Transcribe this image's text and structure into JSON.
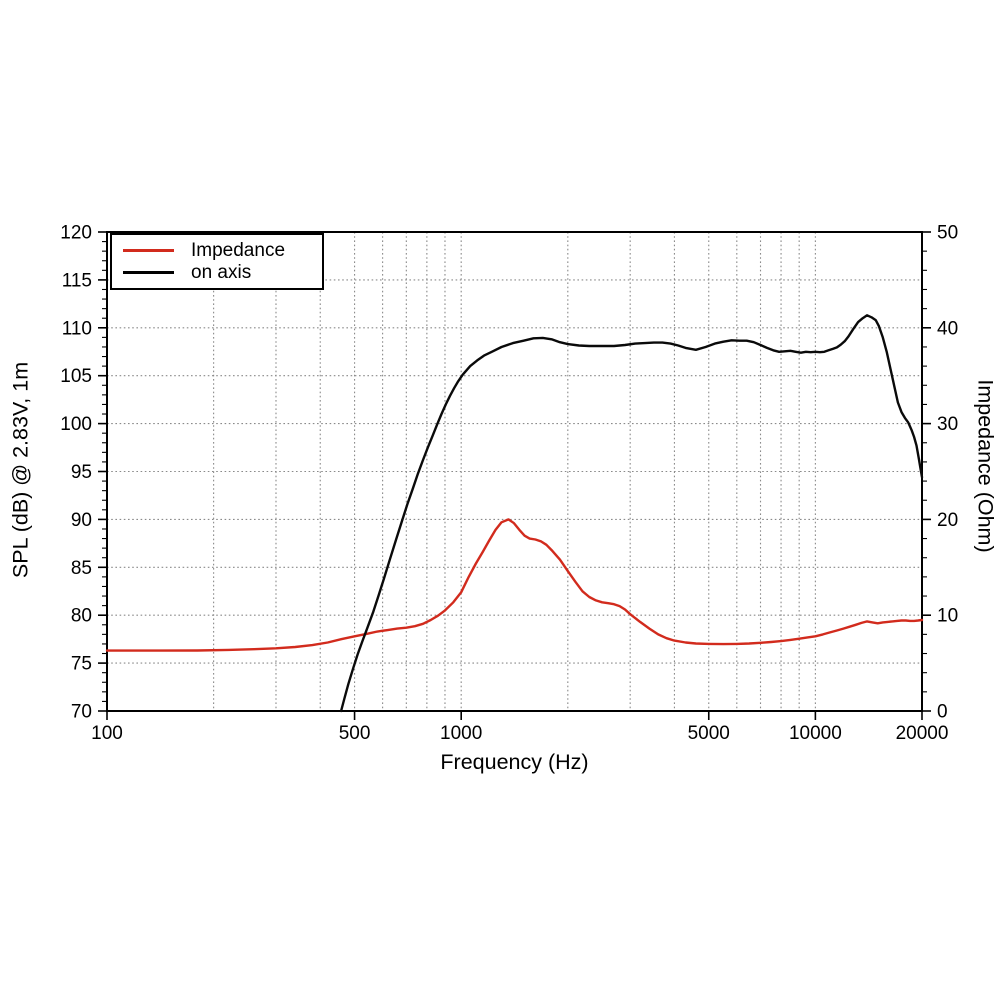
{
  "figure": {
    "background": "#ffffff",
    "frame_color": "#000000",
    "grid_color": "#8a8a8a"
  },
  "chart_data": {
    "type": "line",
    "title": "",
    "xlabel": "Frequency (Hz)",
    "ylabel_left": "SPL (dB) @ 2.83V, 1m",
    "ylabel_right": "Impedance (Ohm)",
    "x_scale": "log",
    "xlim": [
      100,
      20000
    ],
    "ylim_left": [
      70,
      120
    ],
    "ylim_right": [
      0,
      50
    ],
    "grid": true,
    "x_tick_values": [
      100,
      500,
      1000,
      5000,
      10000,
      20000
    ],
    "x_tick_labels": [
      "100",
      "500",
      "1000",
      "5000",
      "10000",
      "20000"
    ],
    "x_gridlines": [
      200,
      300,
      400,
      500,
      600,
      700,
      800,
      900,
      1000,
      2000,
      3000,
      4000,
      5000,
      6000,
      7000,
      8000,
      9000,
      10000
    ],
    "y_left_ticks": [
      70,
      75,
      80,
      85,
      90,
      95,
      100,
      105,
      110,
      115,
      120
    ],
    "y_left_minor_step": 1,
    "y_right_ticks": [
      0,
      10,
      20,
      30,
      40,
      50
    ],
    "y_right_minor_step": 2,
    "y_gridlines_left": [
      75,
      80,
      85,
      90,
      95,
      100,
      105,
      110,
      115
    ],
    "legend": {
      "position": "top-left",
      "entries": [
        {
          "label": "Impedance",
          "color": "#d22b1d"
        },
        {
          "label": "on axis",
          "color": "#000000"
        }
      ]
    },
    "series": [
      {
        "name": "Impedance",
        "axis": "right",
        "unit": "Ohm",
        "color": "#d22b1d",
        "points": [
          [
            100,
            6.3
          ],
          [
            140,
            6.3
          ],
          [
            180,
            6.32
          ],
          [
            220,
            6.38
          ],
          [
            260,
            6.45
          ],
          [
            300,
            6.55
          ],
          [
            340,
            6.68
          ],
          [
            380,
            6.88
          ],
          [
            420,
            7.15
          ],
          [
            460,
            7.5
          ],
          [
            500,
            7.8
          ],
          [
            540,
            8.05
          ],
          [
            580,
            8.3
          ],
          [
            620,
            8.45
          ],
          [
            660,
            8.6
          ],
          [
            700,
            8.7
          ],
          [
            740,
            8.85
          ],
          [
            780,
            9.1
          ],
          [
            820,
            9.5
          ],
          [
            860,
            9.95
          ],
          [
            900,
            10.5
          ],
          [
            950,
            11.35
          ],
          [
            1000,
            12.4
          ],
          [
            1050,
            14.0
          ],
          [
            1100,
            15.4
          ],
          [
            1150,
            16.6
          ],
          [
            1200,
            17.8
          ],
          [
            1250,
            18.9
          ],
          [
            1300,
            19.7
          ],
          [
            1360,
            20.0
          ],
          [
            1410,
            19.6
          ],
          [
            1460,
            18.9
          ],
          [
            1510,
            18.3
          ],
          [
            1560,
            18.0
          ],
          [
            1620,
            17.9
          ],
          [
            1680,
            17.7
          ],
          [
            1740,
            17.35
          ],
          [
            1800,
            16.8
          ],
          [
            1900,
            15.8
          ],
          [
            2000,
            14.6
          ],
          [
            2100,
            13.5
          ],
          [
            2200,
            12.5
          ],
          [
            2300,
            11.9
          ],
          [
            2400,
            11.55
          ],
          [
            2500,
            11.35
          ],
          [
            2600,
            11.25
          ],
          [
            2700,
            11.15
          ],
          [
            2800,
            10.95
          ],
          [
            2900,
            10.6
          ],
          [
            3000,
            10.1
          ],
          [
            3200,
            9.3
          ],
          [
            3400,
            8.6
          ],
          [
            3600,
            8.0
          ],
          [
            3800,
            7.6
          ],
          [
            4000,
            7.35
          ],
          [
            4300,
            7.15
          ],
          [
            4600,
            7.05
          ],
          [
            5000,
            7.0
          ],
          [
            5500,
            6.98
          ],
          [
            6000,
            7.0
          ],
          [
            6500,
            7.05
          ],
          [
            7000,
            7.12
          ],
          [
            7500,
            7.2
          ],
          [
            8000,
            7.3
          ],
          [
            8500,
            7.42
          ],
          [
            9000,
            7.55
          ],
          [
            9500,
            7.68
          ],
          [
            10000,
            7.8
          ],
          [
            10500,
            8.0
          ],
          [
            11000,
            8.2
          ],
          [
            11500,
            8.4
          ],
          [
            12000,
            8.6
          ],
          [
            12500,
            8.8
          ],
          [
            13000,
            9.0
          ],
          [
            13500,
            9.2
          ],
          [
            14000,
            9.35
          ],
          [
            14500,
            9.25
          ],
          [
            15000,
            9.15
          ],
          [
            15500,
            9.25
          ],
          [
            16000,
            9.3
          ],
          [
            16500,
            9.35
          ],
          [
            17000,
            9.4
          ],
          [
            17500,
            9.45
          ],
          [
            18000,
            9.45
          ],
          [
            18500,
            9.4
          ],
          [
            19000,
            9.4
          ],
          [
            19500,
            9.45
          ],
          [
            20000,
            9.5
          ]
        ]
      },
      {
        "name": "on axis",
        "axis": "left",
        "unit": "dB",
        "color": "#0a0a0a",
        "points": [
          [
            458,
            70
          ],
          [
            468,
            71.3
          ],
          [
            480,
            72.8
          ],
          [
            495,
            74.4
          ],
          [
            510,
            75.9
          ],
          [
            525,
            77.2
          ],
          [
            545,
            78.8
          ],
          [
            565,
            80.4
          ],
          [
            585,
            82.1
          ],
          [
            605,
            83.8
          ],
          [
            630,
            85.9
          ],
          [
            655,
            87.9
          ],
          [
            680,
            89.8
          ],
          [
            705,
            91.6
          ],
          [
            730,
            93.2
          ],
          [
            755,
            94.8
          ],
          [
            780,
            96.2
          ],
          [
            805,
            97.5
          ],
          [
            830,
            98.7
          ],
          [
            855,
            99.9
          ],
          [
            880,
            101.0
          ],
          [
            905,
            102.0
          ],
          [
            930,
            102.9
          ],
          [
            955,
            103.7
          ],
          [
            980,
            104.4
          ],
          [
            1010,
            105.1
          ],
          [
            1060,
            106.0
          ],
          [
            1110,
            106.6
          ],
          [
            1160,
            107.1
          ],
          [
            1220,
            107.5
          ],
          [
            1300,
            108.0
          ],
          [
            1400,
            108.4
          ],
          [
            1500,
            108.65
          ],
          [
            1600,
            108.9
          ],
          [
            1700,
            108.95
          ],
          [
            1800,
            108.8
          ],
          [
            1900,
            108.5
          ],
          [
            2000,
            108.3
          ],
          [
            2150,
            108.15
          ],
          [
            2300,
            108.1
          ],
          [
            2500,
            108.1
          ],
          [
            2700,
            108.1
          ],
          [
            2900,
            108.2
          ],
          [
            3100,
            108.35
          ],
          [
            3300,
            108.4
          ],
          [
            3500,
            108.45
          ],
          [
            3700,
            108.45
          ],
          [
            3900,
            108.35
          ],
          [
            4100,
            108.15
          ],
          [
            4300,
            107.9
          ],
          [
            4600,
            107.7
          ],
          [
            4900,
            108.0
          ],
          [
            5200,
            108.35
          ],
          [
            5500,
            108.55
          ],
          [
            5800,
            108.7
          ],
          [
            6100,
            108.65
          ],
          [
            6400,
            108.65
          ],
          [
            6700,
            108.5
          ],
          [
            7000,
            108.2
          ],
          [
            7300,
            107.9
          ],
          [
            7600,
            107.65
          ],
          [
            7900,
            107.5
          ],
          [
            8200,
            107.55
          ],
          [
            8500,
            107.6
          ],
          [
            8800,
            107.5
          ],
          [
            9100,
            107.4
          ],
          [
            9400,
            107.5
          ],
          [
            9700,
            107.45
          ],
          [
            10000,
            107.5
          ],
          [
            10300,
            107.45
          ],
          [
            10600,
            107.5
          ],
          [
            10900,
            107.65
          ],
          [
            11200,
            107.8
          ],
          [
            11500,
            107.95
          ],
          [
            11800,
            108.25
          ],
          [
            12100,
            108.6
          ],
          [
            12400,
            109.1
          ],
          [
            12800,
            109.9
          ],
          [
            13200,
            110.6
          ],
          [
            13600,
            111.0
          ],
          [
            14000,
            111.3
          ],
          [
            14400,
            111.1
          ],
          [
            14800,
            110.8
          ],
          [
            15100,
            110.2
          ],
          [
            15500,
            109.0
          ],
          [
            15900,
            107.5
          ],
          [
            16300,
            105.7
          ],
          [
            16700,
            103.9
          ],
          [
            17100,
            102.2
          ],
          [
            17500,
            101.2
          ],
          [
            17900,
            100.6
          ],
          [
            18300,
            100.1
          ],
          [
            18700,
            99.3
          ],
          [
            19000,
            98.6
          ],
          [
            19300,
            97.7
          ],
          [
            19600,
            96.3
          ],
          [
            19800,
            95.3
          ],
          [
            20000,
            94.4
          ]
        ]
      }
    ]
  }
}
